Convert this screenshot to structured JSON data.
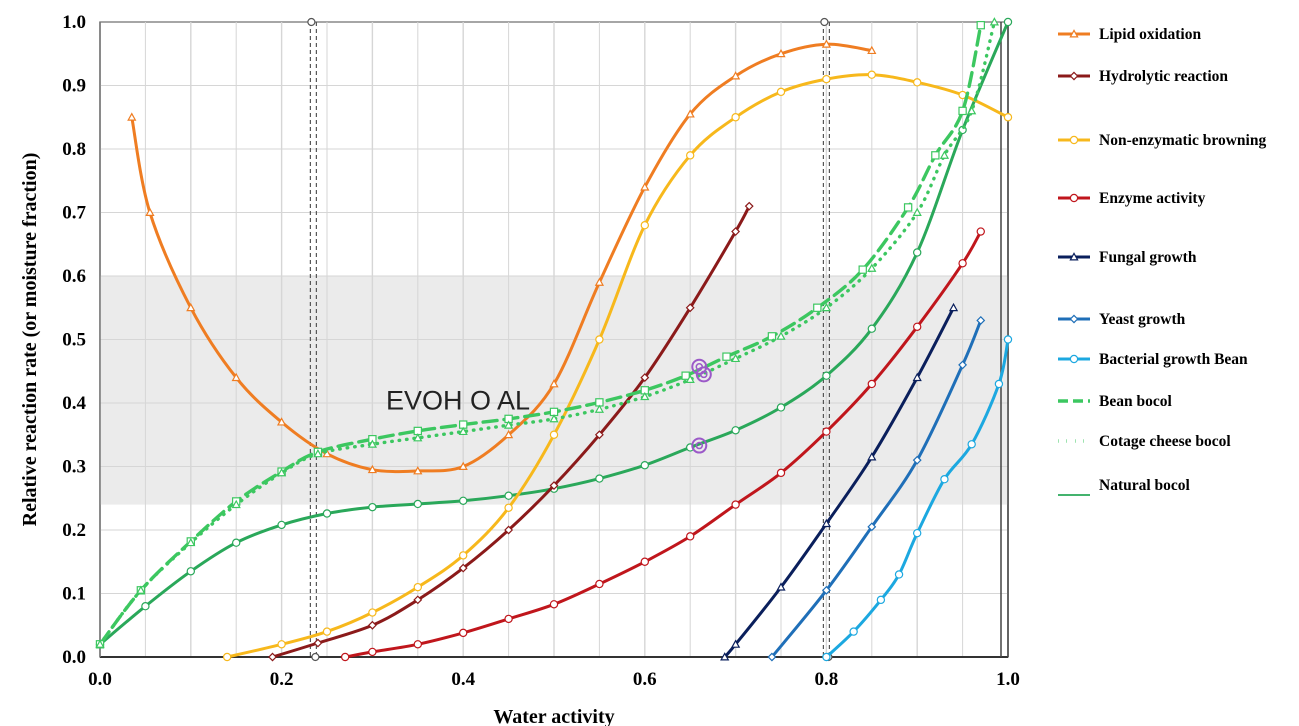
{
  "chart_data": {
    "type": "line",
    "xlabel": "Water activity",
    "ylabel": "Relative reaction rate (or moisture fraction)",
    "xlim": [
      0,
      1
    ],
    "ylim": [
      0,
      1
    ],
    "xticks": [
      "0.0",
      "0.2",
      "0.4",
      "0.6",
      "0.8",
      "1.0"
    ],
    "yticks": [
      "0.0",
      "0.1",
      "0.2",
      "0.3",
      "0.4",
      "0.5",
      "0.6",
      "0.7",
      "0.8",
      "0.9",
      "1.0"
    ],
    "grid": true,
    "legend_position": "right",
    "annotation": "EVOH O AL",
    "shaded_band": [
      0.24,
      0.6
    ],
    "vertical_lines": [
      0.235,
      0.8
    ],
    "series": [
      {
        "name": "Lipid oxidation",
        "color": "#ef7d22",
        "marker": "triangle",
        "style": "solid",
        "x": [
          0.035,
          0.055,
          0.1,
          0.15,
          0.2,
          0.25,
          0.3,
          0.35,
          0.4,
          0.45,
          0.5,
          0.55,
          0.6,
          0.65,
          0.7,
          0.75,
          0.8,
          0.85
        ],
        "y": [
          0.85,
          0.7,
          0.55,
          0.44,
          0.37,
          0.32,
          0.295,
          0.293,
          0.3,
          0.35,
          0.43,
          0.59,
          0.74,
          0.855,
          0.915,
          0.95,
          0.965,
          0.955
        ]
      },
      {
        "name": "Hydrolytic reaction",
        "color": "#8b1a1a",
        "marker": "diamond",
        "style": "solid",
        "x": [
          0.19,
          0.24,
          0.3,
          0.35,
          0.4,
          0.45,
          0.5,
          0.55,
          0.6,
          0.65,
          0.7,
          0.715
        ],
        "y": [
          0.0,
          0.022,
          0.05,
          0.09,
          0.14,
          0.2,
          0.27,
          0.35,
          0.44,
          0.55,
          0.67,
          0.71
        ]
      },
      {
        "name": "Non-enzymatic browning",
        "color": "#f7b81c",
        "marker": "circle",
        "style": "solid",
        "x": [
          0.14,
          0.2,
          0.25,
          0.3,
          0.35,
          0.4,
          0.45,
          0.5,
          0.55,
          0.6,
          0.65,
          0.7,
          0.75,
          0.8,
          0.85,
          0.9,
          0.95,
          1.0
        ],
        "y": [
          0.0,
          0.02,
          0.04,
          0.07,
          0.11,
          0.16,
          0.235,
          0.35,
          0.5,
          0.68,
          0.79,
          0.85,
          0.89,
          0.91,
          0.917,
          0.905,
          0.885,
          0.85
        ]
      },
      {
        "name": "Enzyme activity",
        "color": "#c0161c",
        "marker": "circle",
        "style": "solid",
        "x": [
          0.27,
          0.3,
          0.35,
          0.4,
          0.45,
          0.5,
          0.55,
          0.6,
          0.65,
          0.7,
          0.75,
          0.8,
          0.85,
          0.9,
          0.95,
          0.97
        ],
        "y": [
          0.0,
          0.008,
          0.02,
          0.038,
          0.06,
          0.083,
          0.115,
          0.15,
          0.19,
          0.24,
          0.29,
          0.355,
          0.43,
          0.52,
          0.62,
          0.67
        ]
      },
      {
        "name": "Fungal growth",
        "color": "#0a1f5c",
        "marker": "triangle",
        "style": "solid",
        "x": [
          0.688,
          0.7,
          0.75,
          0.8,
          0.85,
          0.9,
          0.94
        ],
        "y": [
          0.0,
          0.02,
          0.11,
          0.21,
          0.315,
          0.44,
          0.55
        ]
      },
      {
        "name": "Yeast growth",
        "color": "#1f6fb8",
        "marker": "diamond",
        "style": "solid",
        "x": [
          0.74,
          0.8,
          0.85,
          0.9,
          0.95,
          0.97
        ],
        "y": [
          0.0,
          0.105,
          0.205,
          0.31,
          0.46,
          0.53
        ]
      },
      {
        "name": "Bacterial growth  Bean",
        "color": "#1ca8e0",
        "marker": "circle",
        "style": "solid",
        "x": [
          0.8,
          0.83,
          0.86,
          0.88,
          0.9,
          0.93,
          0.96,
          0.99,
          1.0
        ],
        "y": [
          0.0,
          0.04,
          0.09,
          0.13,
          0.195,
          0.28,
          0.335,
          0.43,
          0.5
        ]
      },
      {
        "name": "Bean bocol",
        "color": "#3cc760",
        "marker": "square",
        "style": "dashed",
        "x": [
          0.0,
          0.045,
          0.1,
          0.15,
          0.2,
          0.24,
          0.3,
          0.35,
          0.4,
          0.45,
          0.5,
          0.55,
          0.6,
          0.645,
          0.69,
          0.74,
          0.79,
          0.84,
          0.89,
          0.92,
          0.95,
          0.97
        ],
        "y": [
          0.02,
          0.105,
          0.182,
          0.245,
          0.292,
          0.323,
          0.343,
          0.356,
          0.366,
          0.375,
          0.386,
          0.401,
          0.42,
          0.443,
          0.473,
          0.505,
          0.55,
          0.61,
          0.708,
          0.79,
          0.86,
          0.995
        ]
      },
      {
        "name": "Cotage cheese bocol",
        "color": "#3cc760",
        "marker": "triangle",
        "style": "dotted",
        "x": [
          0.0,
          0.045,
          0.1,
          0.15,
          0.2,
          0.24,
          0.3,
          0.35,
          0.4,
          0.45,
          0.5,
          0.55,
          0.6,
          0.65,
          0.7,
          0.75,
          0.8,
          0.85,
          0.9,
          0.93,
          0.96,
          0.985
        ],
        "y": [
          0.02,
          0.105,
          0.18,
          0.24,
          0.29,
          0.32,
          0.335,
          0.345,
          0.355,
          0.365,
          0.375,
          0.39,
          0.41,
          0.437,
          0.47,
          0.505,
          0.55,
          0.612,
          0.7,
          0.79,
          0.86,
          1.0
        ]
      },
      {
        "name": "Natural bocol",
        "color": "#2aa85a",
        "marker": "circle",
        "style": "solid",
        "x": [
          0.0,
          0.05,
          0.1,
          0.15,
          0.2,
          0.25,
          0.3,
          0.35,
          0.4,
          0.45,
          0.5,
          0.55,
          0.6,
          0.65,
          0.7,
          0.75,
          0.8,
          0.85,
          0.9,
          0.95,
          1.0
        ],
        "y": [
          0.02,
          0.08,
          0.135,
          0.18,
          0.208,
          0.226,
          0.236,
          0.241,
          0.246,
          0.254,
          0.265,
          0.281,
          0.302,
          0.33,
          0.357,
          0.393,
          0.443,
          0.517,
          0.637,
          0.83,
          1.0
        ]
      }
    ]
  }
}
